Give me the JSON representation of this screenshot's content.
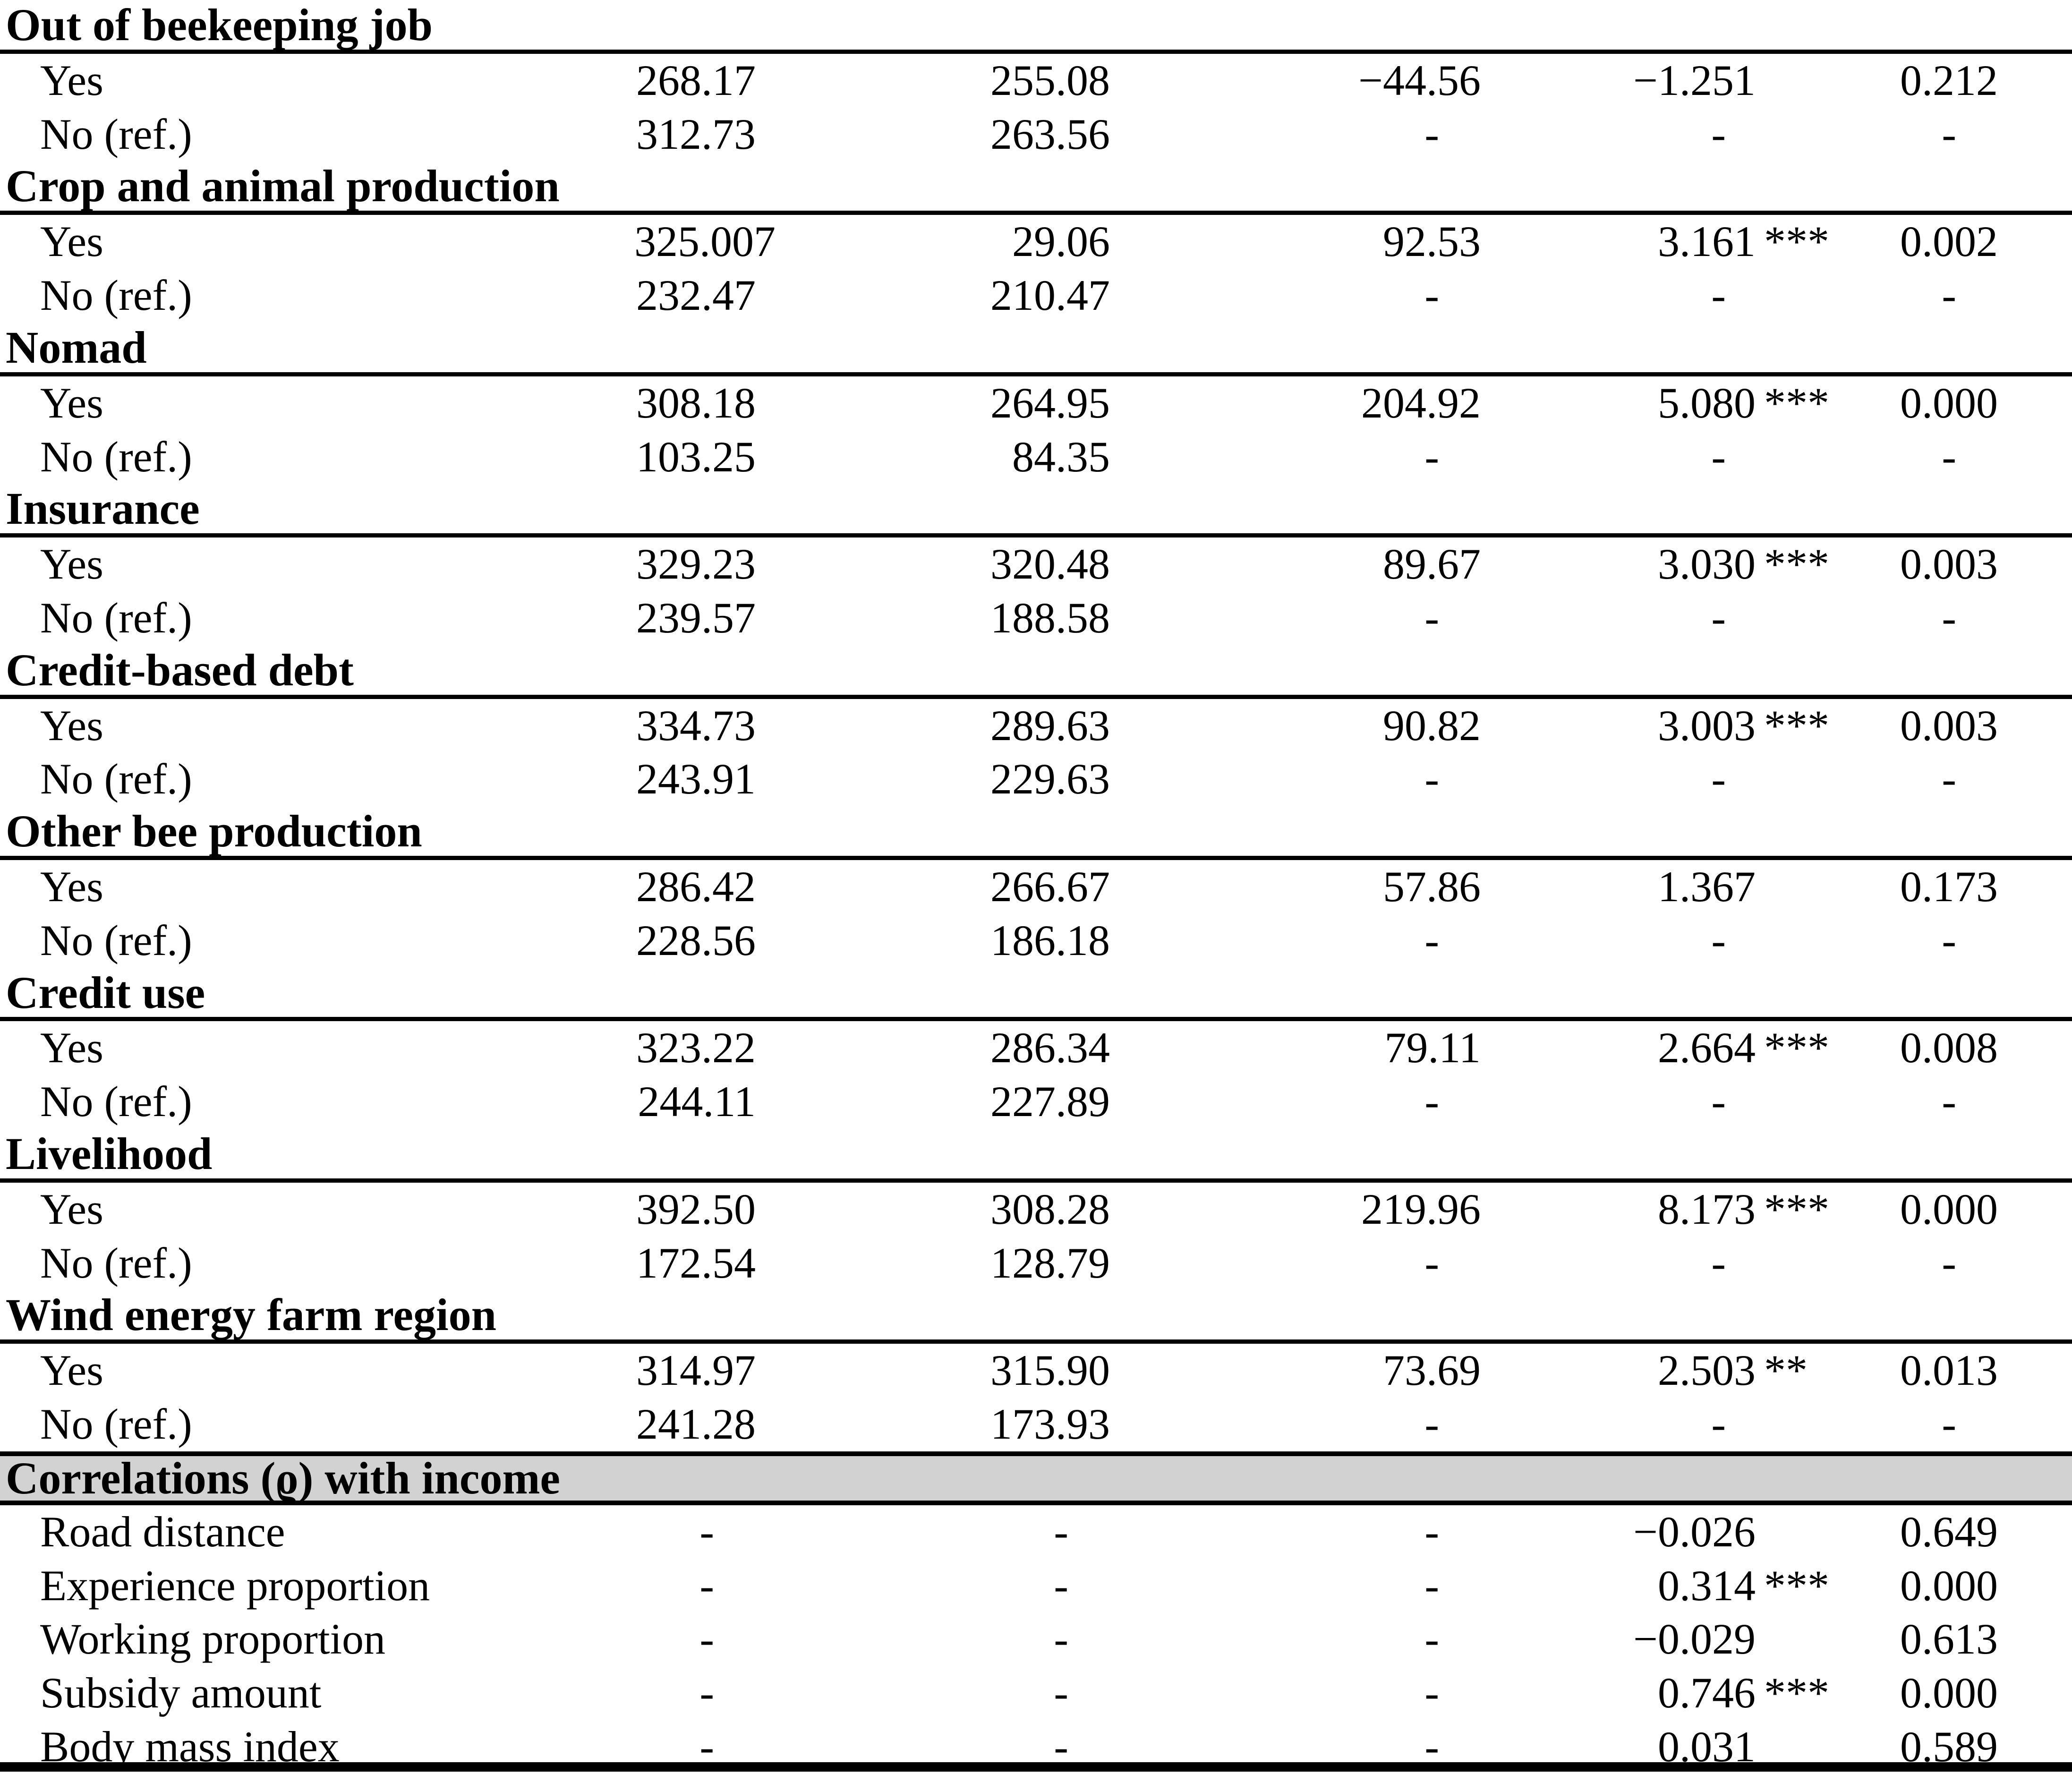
{
  "table": {
    "styles": {
      "band_bg": "#d2d2d2",
      "rule_color": "#000000",
      "text_color": "#000000"
    },
    "rows": [
      {
        "type": "section",
        "label": "Out of beekeeping job"
      },
      {
        "type": "data",
        "label": "Yes",
        "c2": "268.17",
        "c3": "255.08",
        "c4": "−44.56",
        "c5": "−1.251",
        "stars": "",
        "c6": "0.212"
      },
      {
        "type": "data",
        "label": "No (ref.)",
        "c2": "312.73",
        "c3": "263.56",
        "c4": "-",
        "c5": "-",
        "stars": "",
        "c6": "-"
      },
      {
        "type": "section",
        "label": "Crop and animal production"
      },
      {
        "type": "data",
        "label": "Yes",
        "c2": "325.007",
        "c3": "29.06",
        "c4": "92.53",
        "c5": "3.161",
        "stars": "***",
        "c6": "0.002"
      },
      {
        "type": "data",
        "label": "No (ref.)",
        "c2": "232.47",
        "c3": "210.47",
        "c4": "-",
        "c5": "-",
        "stars": "",
        "c6": "-"
      },
      {
        "type": "section",
        "label": "Nomad"
      },
      {
        "type": "data",
        "label": "Yes",
        "c2": "308.18",
        "c3": "264.95",
        "c4": "204.92",
        "c5": "5.080",
        "stars": "***",
        "c6": "0.000"
      },
      {
        "type": "data",
        "label": "No (ref.)",
        "c2": "103.25",
        "c3": "84.35",
        "c4": "-",
        "c5": "-",
        "stars": "",
        "c6": "-"
      },
      {
        "type": "section",
        "label": "Insurance"
      },
      {
        "type": "data",
        "label": "Yes",
        "c2": "329.23",
        "c3": "320.48",
        "c4": "89.67",
        "c5": "3.030",
        "stars": "***",
        "c6": "0.003"
      },
      {
        "type": "data",
        "label": "No (ref.)",
        "c2": "239.57",
        "c3": "188.58",
        "c4": "-",
        "c5": "-",
        "stars": "",
        "c6": "-"
      },
      {
        "type": "section",
        "label": "Credit-based debt"
      },
      {
        "type": "data",
        "label": "Yes",
        "c2": "334.73",
        "c3": "289.63",
        "c4": "90.82",
        "c5": "3.003",
        "stars": "***",
        "c6": "0.003"
      },
      {
        "type": "data",
        "label": "No (ref.)",
        "c2": "243.91",
        "c3": "229.63",
        "c4": "-",
        "c5": "-",
        "stars": "",
        "c6": "-"
      },
      {
        "type": "section",
        "label": "Other bee production"
      },
      {
        "type": "data",
        "label": "Yes",
        "c2": "286.42",
        "c3": "266.67",
        "c4": "57.86",
        "c5": "1.367",
        "stars": "",
        "c6": "0.173"
      },
      {
        "type": "data",
        "label": "No (ref.)",
        "c2": "228.56",
        "c3": "186.18",
        "c4": "-",
        "c5": "-",
        "stars": "",
        "c6": "-"
      },
      {
        "type": "section",
        "label": "Credit use"
      },
      {
        "type": "data",
        "label": "Yes",
        "c2": "323.22",
        "c3": "286.34",
        "c4": "79.11",
        "c5": "2.664",
        "stars": "***",
        "c6": "0.008"
      },
      {
        "type": "data",
        "label": "No (ref.)",
        "c2": "244.11",
        "c3": "227.89",
        "c4": "-",
        "c5": "-",
        "stars": "",
        "c6": "-"
      },
      {
        "type": "section",
        "label": "Livelihood"
      },
      {
        "type": "data",
        "label": "Yes",
        "c2": "392.50",
        "c3": "308.28",
        "c4": "219.96",
        "c5": "8.173",
        "stars": "***",
        "c6": "0.000"
      },
      {
        "type": "data",
        "label": "No (ref.)",
        "c2": "172.54",
        "c3": "128.79",
        "c4": "-",
        "c5": "-",
        "stars": "",
        "c6": "-"
      },
      {
        "type": "section",
        "label": "Wind energy farm region"
      },
      {
        "type": "data",
        "label": "Yes",
        "c2": "314.97",
        "c3": "315.90",
        "c4": "73.69",
        "c5": "2.503",
        "stars": "**",
        "c6": "0.013"
      },
      {
        "type": "data",
        "label": "No (ref.)",
        "c2": "241.28",
        "c3": "173.93",
        "c4": "-",
        "c5": "-",
        "stars": "",
        "c6": "-"
      },
      {
        "type": "band",
        "label": "Correlations (ϱ) with income"
      },
      {
        "type": "data",
        "label": "Road distance",
        "c2": "-",
        "c3": "-",
        "c4": "-",
        "c5": "−0.026",
        "stars": "",
        "c6": "0.649"
      },
      {
        "type": "data",
        "label": "Experience proportion",
        "c2": "-",
        "c3": "-",
        "c4": "-",
        "c5": "0.314",
        "stars": "***",
        "c6": "0.000"
      },
      {
        "type": "data",
        "label": "Working proportion",
        "c2": "-",
        "c3": "-",
        "c4": "-",
        "c5": "−0.029",
        "stars": "",
        "c6": "0.613"
      },
      {
        "type": "data",
        "label": "Subsidy amount",
        "c2": "-",
        "c3": "-",
        "c4": "-",
        "c5": "0.746",
        "stars": "***",
        "c6": "0.000"
      },
      {
        "type": "data",
        "label": "Body mass index",
        "c2": "-",
        "c3": "-",
        "c4": "-",
        "c5": "0.031",
        "stars": "",
        "c6": "0.589"
      }
    ]
  }
}
